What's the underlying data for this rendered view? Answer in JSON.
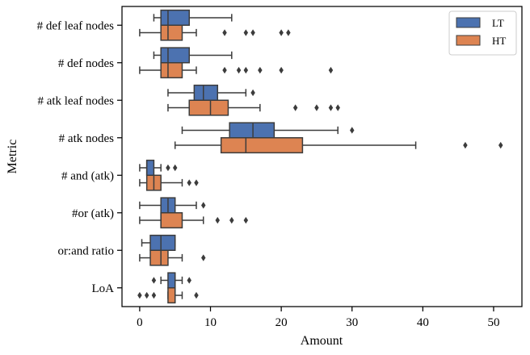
{
  "chart_data": {
    "type": "boxplot",
    "orientation": "horizontal",
    "xlabel": "Amount",
    "ylabel": "Metric",
    "xlim": [
      -2.5,
      54
    ],
    "xticks": [
      0,
      10,
      20,
      30,
      40,
      50
    ],
    "grid": false,
    "legend_position": "top-right",
    "categories": [
      "# def leaf nodes",
      "# def nodes",
      "# atk leaf nodes",
      "# atk nodes",
      "# and (atk)",
      "#or (atk)",
      "or:and ratio",
      "LoA"
    ],
    "series": [
      {
        "name": "LT",
        "color": "#4c72b0",
        "boxes": [
          {
            "whislo": 2,
            "q1": 3,
            "med": 4,
            "q3": 7,
            "whishi": 13,
            "fliers": []
          },
          {
            "whislo": 2,
            "q1": 3,
            "med": 4,
            "q3": 7,
            "whishi": 13,
            "fliers": []
          },
          {
            "whislo": 4,
            "q1": 7.7,
            "med": 9,
            "q3": 11,
            "whishi": 15,
            "fliers": [
              16
            ]
          },
          {
            "whislo": 6,
            "q1": 12.7,
            "med": 16,
            "q3": 19,
            "whishi": 28,
            "fliers": [
              30
            ]
          },
          {
            "whislo": 0,
            "q1": 1,
            "med": 1,
            "q3": 2,
            "whishi": 3,
            "fliers": [
              4,
              5
            ]
          },
          {
            "whislo": 0,
            "q1": 3,
            "med": 4,
            "q3": 5,
            "whishi": 8,
            "fliers": [
              9
            ]
          },
          {
            "whislo": 0.3,
            "q1": 1.5,
            "med": 3,
            "q3": 5,
            "whishi": 5,
            "fliers": []
          },
          {
            "whislo": 3,
            "q1": 4,
            "med": 5,
            "q3": 5,
            "whishi": 6,
            "fliers": [
              2,
              7
            ]
          }
        ]
      },
      {
        "name": "HT",
        "color": "#dd8452",
        "boxes": [
          {
            "whislo": 0,
            "q1": 3,
            "med": 4,
            "q3": 6,
            "whishi": 8,
            "fliers": [
              12,
              15,
              16,
              20,
              21
            ]
          },
          {
            "whislo": 0,
            "q1": 3,
            "med": 4,
            "q3": 6,
            "whishi": 8,
            "fliers": [
              12,
              14,
              15,
              17,
              20,
              27
            ]
          },
          {
            "whislo": 4,
            "q1": 7,
            "med": 10,
            "q3": 12.5,
            "whishi": 17,
            "fliers": [
              22,
              25,
              27,
              28
            ]
          },
          {
            "whislo": 5,
            "q1": 11.5,
            "med": 15,
            "q3": 23,
            "whishi": 39,
            "fliers": [
              46,
              51
            ]
          },
          {
            "whislo": 0,
            "q1": 1,
            "med": 2,
            "q3": 3,
            "whishi": 6,
            "fliers": [
              7,
              8
            ]
          },
          {
            "whislo": 0,
            "q1": 3,
            "med": 3,
            "q3": 6,
            "whishi": 9,
            "fliers": [
              11,
              13,
              15
            ]
          },
          {
            "whislo": 0,
            "q1": 1.5,
            "med": 3,
            "q3": 4,
            "whishi": 6,
            "fliers": [
              9
            ]
          },
          {
            "whislo": 4,
            "q1": 4,
            "med": 5,
            "q3": 5,
            "whishi": 6,
            "fliers": [
              0,
              1,
              2,
              8
            ]
          }
        ]
      }
    ]
  }
}
